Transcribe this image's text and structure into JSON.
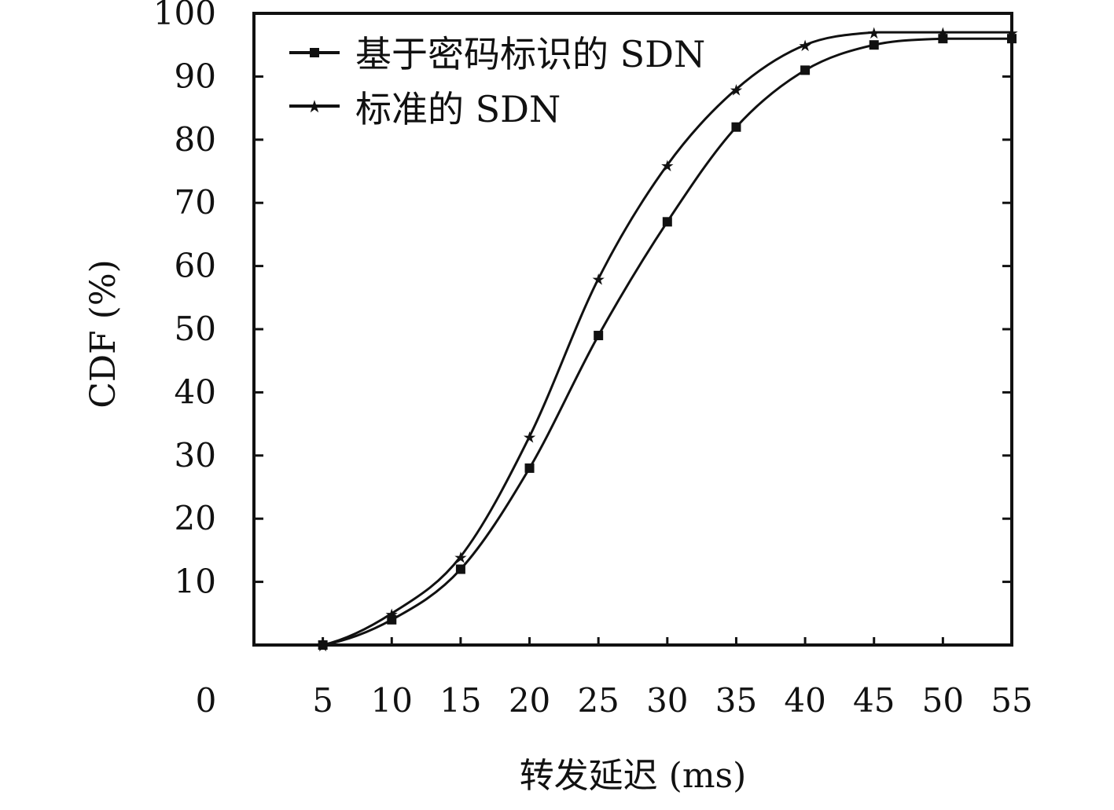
{
  "chart_data": {
    "type": "line",
    "title": "",
    "xlabel": "转发延迟 (ms)",
    "ylabel": "CDF (%)",
    "xlim": [
      0,
      55
    ],
    "ylim": [
      0,
      100
    ],
    "x_ticks": [
      5,
      10,
      15,
      20,
      25,
      30,
      35,
      40,
      45,
      50,
      55
    ],
    "x_origin_label": "0",
    "y_ticks": [
      10,
      20,
      30,
      40,
      50,
      60,
      70,
      80,
      90,
      100
    ],
    "grid": false,
    "legend_position": "top-left",
    "series": [
      {
        "name": "基于密码标识的 SDN",
        "marker": "square",
        "color": "#111111",
        "x": [
          0,
          5,
          10,
          15,
          20,
          25,
          30,
          35,
          40,
          45,
          50,
          55
        ],
        "y": [
          0,
          0,
          4,
          12,
          28,
          49,
          67,
          82,
          91,
          95,
          96,
          96
        ]
      },
      {
        "name": "标准的 SDN",
        "marker": "star",
        "color": "#111111",
        "x": [
          0,
          5,
          10,
          15,
          20,
          25,
          30,
          35,
          40,
          45,
          50,
          55
        ],
        "y": [
          0,
          0,
          5,
          14,
          33,
          58,
          76,
          88,
          95,
          97,
          97,
          97
        ]
      }
    ]
  }
}
